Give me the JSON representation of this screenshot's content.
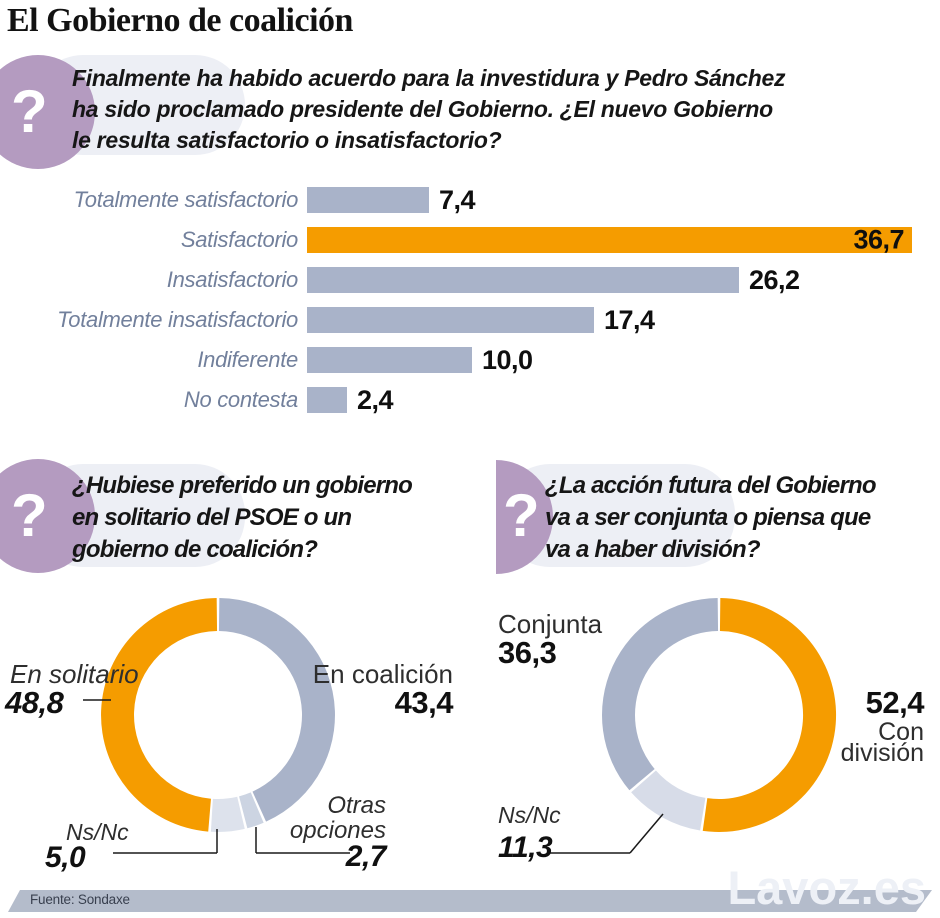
{
  "title": "El Gobierno de coalición",
  "question_mark": "?",
  "colors": {
    "accent_orange": "#f59c00",
    "blue_gray": "#a9b3c9",
    "badge_purple": "#b49bc0",
    "bubble_gray": "#edeff5",
    "footer_bar": "#b4bccb"
  },
  "chart_data": [
    {
      "type": "bar",
      "orientation": "horizontal",
      "title": "Finalmente ha habido acuerdo para la investidura y Pedro Sánchez ha sido proclamado presidente del Gobierno. ¿El nuevo Gobierno le resulta satisfactorio o insatisfactorio?",
      "title_lines": [
        "Finalmente ha habido acuerdo para la investidura y Pedro Sánchez",
        "ha sido proclamado presidente del Gobierno. ¿El nuevo Gobierno",
        "le resulta satisfactorio o insatisfactorio?"
      ],
      "categories": [
        "Totalmente satisfactorio",
        "Satisfactorio",
        "Insatisfactorio",
        "Totalmente insatisfactorio",
        "Indiferente",
        "No contesta"
      ],
      "values": [
        7.4,
        36.7,
        26.2,
        17.4,
        10.0,
        2.4
      ],
      "value_labels": [
        "7,4",
        "36,7",
        "26,2",
        "17,4",
        "10,0",
        "2,4"
      ],
      "highlight_index": 1,
      "bar_color": "#a9b3c9",
      "highlight_color": "#f59c00",
      "xlim": [
        0,
        36.7
      ],
      "grid": false
    },
    {
      "type": "donut",
      "title": "¿Hubiese preferido un gobierno en solitario del PSOE o un gobierno de coalición?",
      "title_lines": [
        "¿Hubiese preferido un gobierno",
        "en solitario del PSOE o un",
        "gobierno de coalición?"
      ],
      "start_angle": "top",
      "clockwise": true,
      "slices": [
        {
          "label": "En coalición",
          "value": 43.4,
          "value_label": "43,4",
          "color": "#a9b3c9"
        },
        {
          "label": "Otras opciones",
          "label_lines": [
            "Otras",
            "opciones"
          ],
          "value": 2.7,
          "value_label": "2,7",
          "color": "#ccd4e2"
        },
        {
          "label": "Ns/Nc",
          "value": 5.0,
          "value_label": "5,0",
          "color": "#dde2ec"
        },
        {
          "label": "En solitario",
          "value": 48.8,
          "value_label": "48,8",
          "color": "#f59c00"
        }
      ]
    },
    {
      "type": "donut",
      "title": "¿La acción futura del Gobierno va a ser conjunta o piensa que va a haber división?",
      "title_lines": [
        "¿La acción futura del Gobierno",
        "va a ser conjunta o piensa que",
        "va a haber división?"
      ],
      "start_angle": "top",
      "clockwise": true,
      "slices": [
        {
          "label": "Con división",
          "label_lines": [
            "Con",
            "división"
          ],
          "value": 52.4,
          "value_label": "52,4",
          "color": "#f59c00"
        },
        {
          "label": "Ns/Nc",
          "value": 11.3,
          "value_label": "11,3",
          "color": "#d7dce8"
        },
        {
          "label": "Conjunta",
          "value": 36.3,
          "value_label": "36,3",
          "color": "#a9b3c9"
        }
      ]
    }
  ],
  "footer": {
    "source": "Fuente: Sondaxe",
    "watermark": "Lavoz.es"
  }
}
